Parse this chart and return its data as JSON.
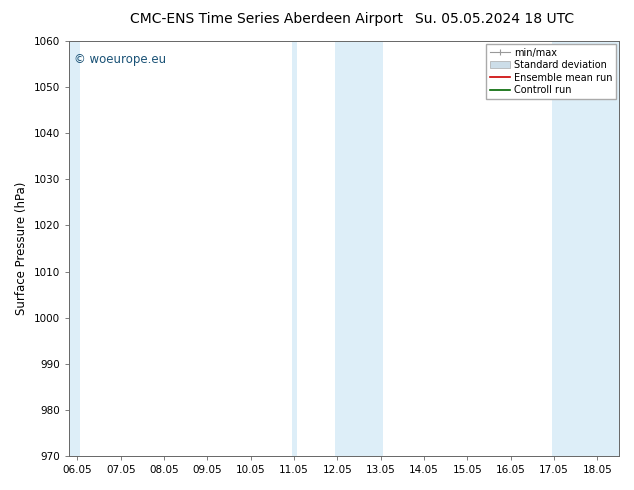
{
  "title_left": "CMC-ENS Time Series Aberdeen Airport",
  "title_right": "Su. 05.05.2024 18 UTC",
  "ylabel": "Surface Pressure (hPa)",
  "ylim": [
    970,
    1060
  ],
  "yticks": [
    970,
    980,
    990,
    1000,
    1010,
    1020,
    1030,
    1040,
    1050,
    1060
  ],
  "xlim_start": 5.85,
  "xlim_end": 18.55,
  "xtick_labels": [
    "06.05",
    "07.05",
    "08.05",
    "09.05",
    "10.05",
    "11.05",
    "12.05",
    "13.05",
    "14.05",
    "15.05",
    "16.05",
    "17.05",
    "18.05"
  ],
  "xtick_positions": [
    6.05,
    7.05,
    8.05,
    9.05,
    10.05,
    11.05,
    12.05,
    13.05,
    14.05,
    15.05,
    16.05,
    17.05,
    18.05
  ],
  "shaded_bands": [
    {
      "x_start": 5.85,
      "x_end": 6.1,
      "color": "#ddeef8"
    },
    {
      "x_start": 11.0,
      "x_end": 11.12,
      "color": "#ddeef8"
    },
    {
      "x_start": 12.0,
      "x_end": 13.1,
      "color": "#ddeef8"
    },
    {
      "x_start": 17.0,
      "x_end": 18.55,
      "color": "#ddeef8"
    }
  ],
  "background_color": "#ffffff",
  "plot_bg_color": "#ffffff",
  "watermark_text": "© woeurope.eu",
  "watermark_color": "#1a5276",
  "legend_minmax_color": "#999999",
  "legend_std_color": "#ccdde8",
  "legend_ens_color": "#cc0000",
  "legend_ctrl_color": "#006600",
  "font_family": "DejaVu Sans",
  "title_fontsize": 10,
  "tick_fontsize": 7.5,
  "ylabel_fontsize": 8.5,
  "watermark_fontsize": 8.5,
  "legend_fontsize": 7
}
